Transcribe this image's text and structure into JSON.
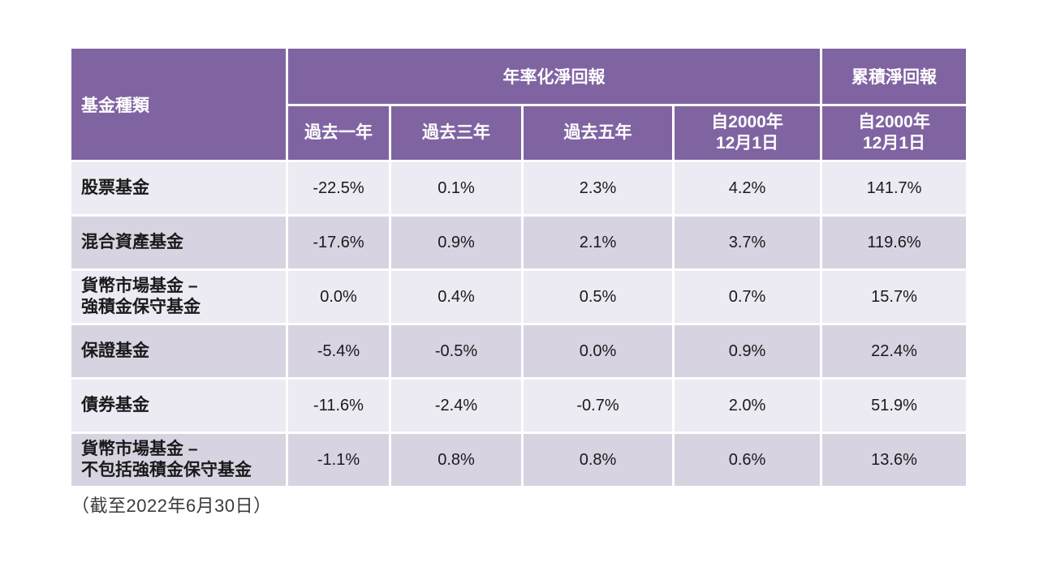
{
  "colors": {
    "header_bg": "#8064A2",
    "header_text": "#FFFFFF",
    "row_band_light": "#ECEAF2",
    "row_band_dark": "#D8D3E1",
    "body_text": "#1A1A1A",
    "page_bg": "#FFFFFF",
    "grid_line": "#FFFFFF"
  },
  "footnote": "（截至2022年6月30日）",
  "chart_data": {
    "type": "table",
    "corner_header": "基金種類",
    "column_groups": [
      {
        "label": "年率化淨回報",
        "colspan": 4
      },
      {
        "label": "累積淨回報",
        "colspan": 1
      }
    ],
    "columns": [
      "過去一年",
      "過去三年",
      "過去五年",
      "自2000年\n12月1日",
      "自2000年\n12月1日"
    ],
    "rows": [
      {
        "label": "股票基金",
        "values": [
          "-22.5%",
          "0.1%",
          "2.3%",
          "4.2%",
          "141.7%"
        ]
      },
      {
        "label": "混合資產基金",
        "values": [
          "-17.6%",
          "0.9%",
          "2.1%",
          "3.7%",
          "119.6%"
        ]
      },
      {
        "label": "貨幣市場基金 –\n強積金保守基金",
        "values": [
          "0.0%",
          "0.4%",
          "0.5%",
          "0.7%",
          "15.7%"
        ]
      },
      {
        "label": "保證基金",
        "values": [
          "-5.4%",
          "-0.5%",
          "0.0%",
          "0.9%",
          "22.4%"
        ]
      },
      {
        "label": "債券基金",
        "values": [
          "-11.6%",
          "-2.4%",
          "-0.7%",
          "2.0%",
          "51.9%"
        ]
      },
      {
        "label": "貨幣市場基金 –\n不包括強積金保守基金",
        "values": [
          "-1.1%",
          "0.8%",
          "0.8%",
          "0.6%",
          "13.6%"
        ]
      }
    ]
  }
}
